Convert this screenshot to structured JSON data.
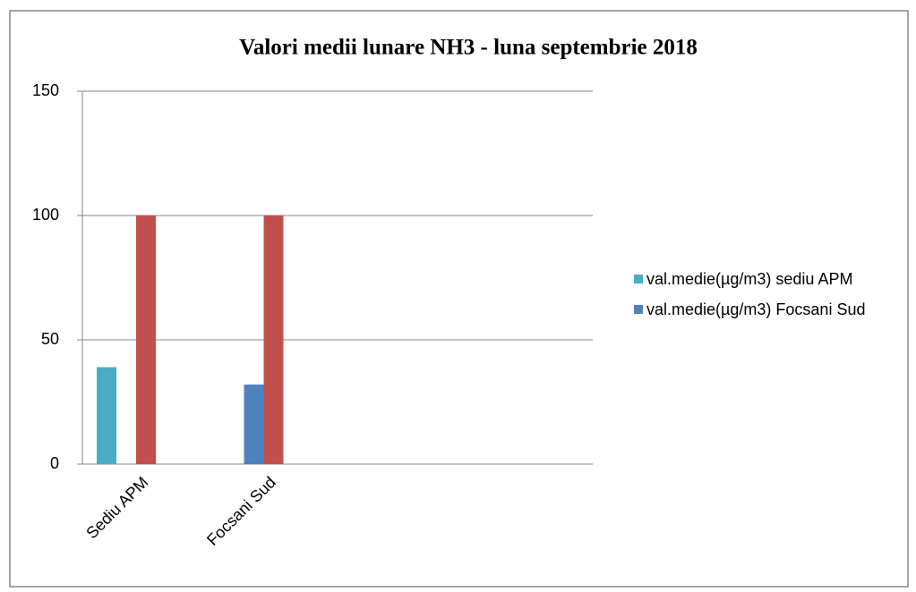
{
  "chart_data": {
    "type": "bar",
    "title": "Valori medii lunare NH3 - luna septembrie  2018",
    "categories": [
      "Sediu APM",
      "Focsani Sud",
      null,
      null
    ],
    "series": [
      {
        "name": "val.medie(µg/m3) sediu APM",
        "color": "#4bacc6",
        "values": [
          39,
          null,
          null,
          null
        ]
      },
      {
        "name": "val.medie(µg/m3) Focsani Sud",
        "color": "#4f81bd",
        "values": [
          null,
          32,
          null,
          null
        ]
      },
      {
        "color": "#c0504d",
        "values": [
          100,
          100,
          null,
          null
        ]
      }
    ],
    "ylim": [
      0,
      150
    ],
    "yticks": [
      0,
      50,
      100,
      150
    ],
    "grid": true,
    "legend": "right"
  }
}
